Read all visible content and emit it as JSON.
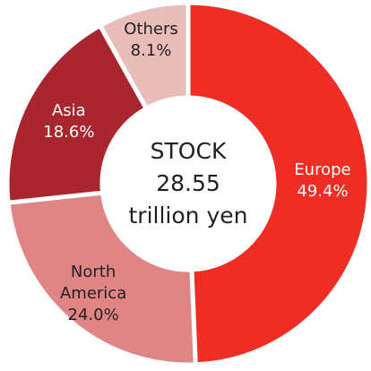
{
  "chart_data": {
    "type": "donut",
    "categories": [
      "Europe",
      "North America",
      "Asia",
      "Others"
    ],
    "values": [
      49.4,
      24.0,
      18.6,
      8.1
    ],
    "value_labels": [
      "49.4%",
      "24.0%",
      "18.6%",
      "8.1%"
    ],
    "colors": [
      "#ee2d24",
      "#df8585",
      "#a9262f",
      "#e9bdb9"
    ],
    "center_label": {
      "title": "STOCK",
      "value": 28.55,
      "unit": "trillion yen"
    }
  }
}
